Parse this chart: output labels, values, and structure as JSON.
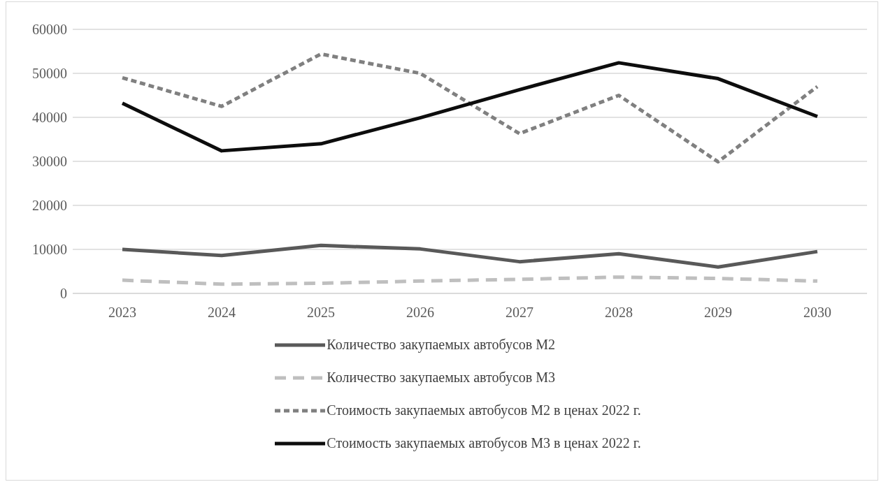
{
  "chart_data": {
    "type": "line",
    "categories": [
      "2023",
      "2024",
      "2025",
      "2026",
      "2027",
      "2028",
      "2029",
      "2030"
    ],
    "series": [
      {
        "name": "Количество закупаемых автобусов М2",
        "color": "#595959",
        "line_style": "solid",
        "values": [
          10000,
          8600,
          10900,
          10100,
          7200,
          9000,
          6000,
          9500
        ]
      },
      {
        "name": "Количество закупаемых автобусов М3",
        "color": "#bfbfbf",
        "line_style": "dashed",
        "values": [
          3000,
          2100,
          2300,
          2800,
          3200,
          3700,
          3400,
          2800
        ]
      },
      {
        "name": "Стоимость закупаемых автобусов М2 в ценах 2022 г.",
        "color": "#808080",
        "line_style": "dashed",
        "values": [
          49000,
          42500,
          54400,
          50000,
          36300,
          45000,
          29900,
          47000
        ]
      },
      {
        "name": "Стоимость закупаемых автобусов М3 в ценах 2022 г.",
        "color": "#0d0d0d",
        "line_style": "solid",
        "values": [
          43200,
          32400,
          34000,
          39900,
          46300,
          52400,
          48800,
          40200
        ]
      }
    ],
    "ylim": [
      0,
      60000
    ],
    "yticks": [
      0,
      10000,
      20000,
      30000,
      40000,
      50000,
      60000
    ],
    "grid": "y",
    "legend": "bottom",
    "marker": "none"
  }
}
